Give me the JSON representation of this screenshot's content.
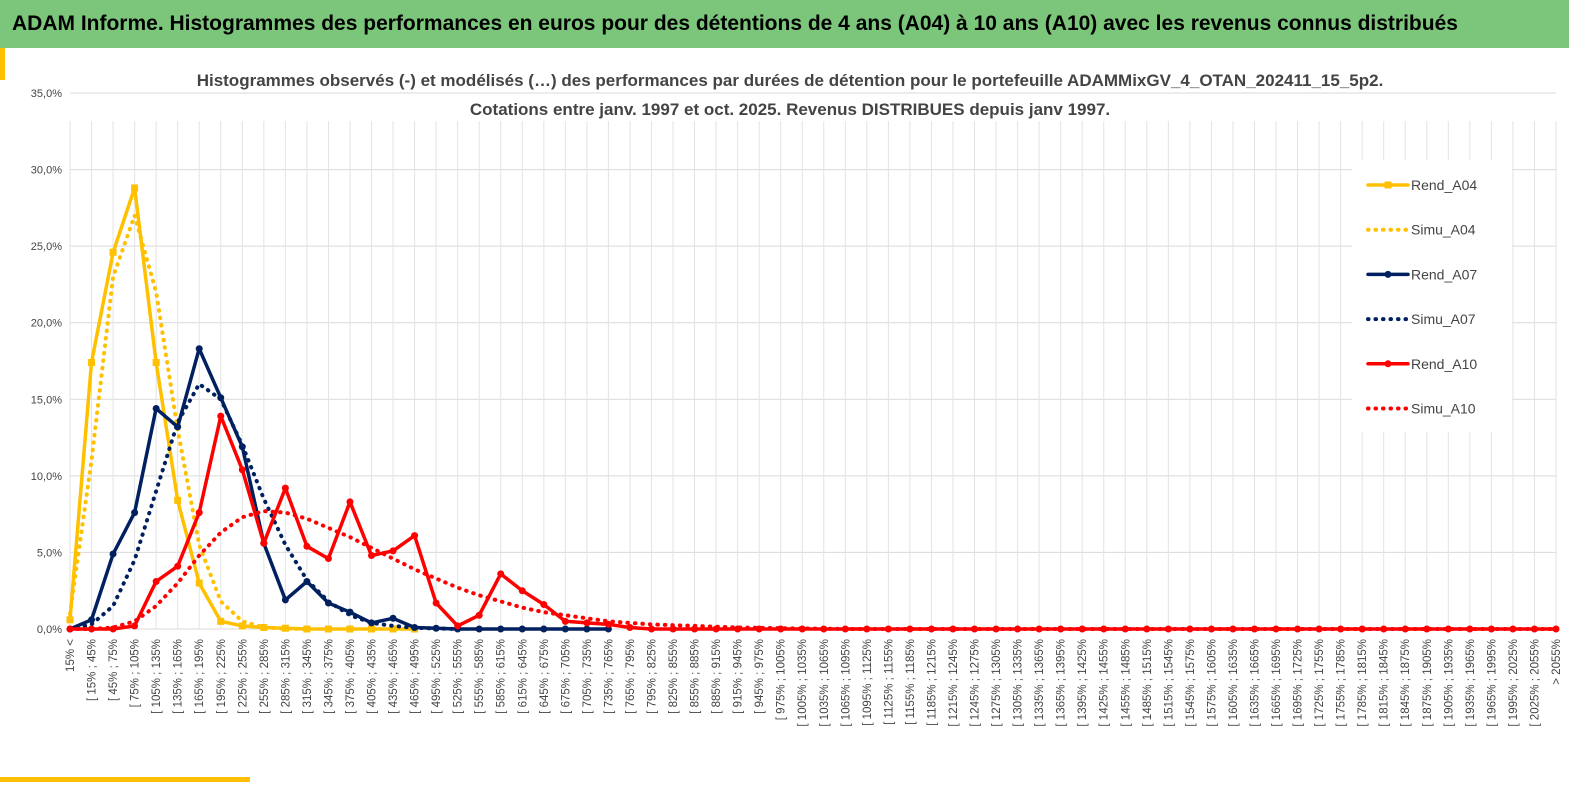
{
  "header": {
    "title": "ADAM Informe. Histogrammes des performances en euros pour des détentions de 4 ans (A04) à 10 ans (A10) avec les revenus connus distribués"
  },
  "chart_data": {
    "type": "line",
    "title": [
      "Histogrammes observés (-) et modélisés (…) des performances par durées de détention pour le portefeuille ADAMMixGV_4_OTAN_202411_15_5p2.",
      "Cotations entre janv. 1997 et oct. 2025. Revenus DISTRIBUES depuis janv 1997."
    ],
    "categories": [
      "15% <",
      "[ 15% ; 45%",
      "[ 45% ; 75%",
      "[ 75% ; 105%",
      "[ 105% ; 135%",
      "[ 135% ; 165%",
      "[ 165% ; 195%",
      "[ 195% ; 225%",
      "[ 225% ; 255%",
      "[ 255% ; 285%",
      "[ 285% ; 315%",
      "[ 315% ; 345%",
      "[ 345% ; 375%",
      "[ 375% ; 405%",
      "[ 405% ; 435%",
      "[ 435% ; 465%",
      "[ 465% ; 495%",
      "[ 495% ; 525%",
      "[ 525% ; 555%",
      "[ 555% ; 585%",
      "[ 585% ; 615%",
      "[ 615% ; 645%",
      "[ 645% ; 675%",
      "[ 675% ; 705%",
      "[ 705% ; 735%",
      "[ 735% ; 765%",
      "[ 765% ; 795%",
      "[ 795% ; 825%",
      "[ 825% ; 855%",
      "[ 855% ; 885%",
      "[ 885% ; 915%",
      "[ 915% ; 945%",
      "[ 945% ; 975%",
      "[ 975% ; 1005%",
      "[ 1005% ; 1035%",
      "[ 1035% ; 1065%",
      "[ 1065% ; 1095%",
      "[ 1095% ; 1125%",
      "[ 1125% ; 1155%",
      "[ 1155% ; 1185%",
      "[ 1185% ; 1215%",
      "[ 1215% ; 1245%",
      "[ 1245% ; 1275%",
      "[ 1275% ; 1305%",
      "[ 1305% ; 1335%",
      "[ 1335% ; 1365%",
      "[ 1365% ; 1395%",
      "[ 1395% ; 1425%",
      "[ 1425% ; 1455%",
      "[ 1455% ; 1485%",
      "[ 1485% ; 1515%",
      "[ 1515% ; 1545%",
      "[ 1545% ; 1575%",
      "[ 1575% ; 1605%",
      "[ 1605% ; 1635%",
      "[ 1635% ; 1665%",
      "[ 1665% ; 1695%",
      "[ 1695% ; 1725%",
      "[ 1725% ; 1755%",
      "[ 1755% ; 1785%",
      "[ 1785% ; 1815%",
      "[ 1815% ; 1845%",
      "[ 1845% ; 1875%",
      "[ 1875% ; 1905%",
      "[ 1905% ; 1935%",
      "[ 1935% ; 1965%",
      "[ 1965% ; 1995%",
      "[ 1995% ; 2025%",
      "[ 2025% ; 2055%",
      "> 2055%"
    ],
    "series": [
      {
        "name": "Rend_A04",
        "color": "#ffc000",
        "style": "solid",
        "marker": "square",
        "values": [
          0.6,
          17.4,
          24.6,
          28.8,
          17.4,
          8.4,
          3.0,
          0.5,
          0.2,
          0.1,
          0.05,
          0,
          0,
          0,
          0,
          0,
          0,
          null,
          null,
          null,
          null,
          null,
          null,
          null,
          null,
          null,
          null,
          null,
          null,
          null,
          null,
          null,
          null,
          null,
          null,
          null,
          null,
          null,
          null,
          null,
          null,
          null,
          null,
          null,
          null,
          null,
          null,
          null,
          null,
          null,
          null,
          null,
          null,
          null,
          null,
          null,
          null,
          null,
          null,
          null,
          null,
          null,
          null,
          null,
          null,
          null,
          null,
          null,
          null,
          null
        ]
      },
      {
        "name": "Simu_A04",
        "color": "#ffc000",
        "style": "dotted",
        "values": [
          1.0,
          11,
          23,
          27,
          22,
          13,
          5.5,
          1.8,
          0.5,
          0.1,
          0.02,
          0,
          null,
          null,
          null,
          null,
          null,
          null,
          null,
          null,
          null,
          null,
          null,
          null,
          null,
          null,
          null,
          null,
          null,
          null,
          null,
          null,
          null,
          null,
          null,
          null,
          null,
          null,
          null,
          null,
          null,
          null,
          null,
          null,
          null,
          null,
          null,
          null,
          null,
          null,
          null,
          null,
          null,
          null,
          null,
          null,
          null,
          null,
          null,
          null,
          null,
          null,
          null,
          null,
          null,
          null,
          null,
          null,
          null,
          null
        ]
      },
      {
        "name": "Rend_A07",
        "color": "#002060",
        "style": "solid",
        "marker": "circle",
        "values": [
          0,
          0.6,
          4.9,
          7.6,
          14.4,
          13.2,
          18.3,
          15.1,
          11.9,
          5.6,
          1.9,
          3.1,
          1.7,
          1.1,
          0.4,
          0.7,
          0.1,
          0.05,
          0,
          0,
          0,
          0,
          0,
          0,
          0,
          0,
          null,
          null,
          null,
          null,
          null,
          null,
          null,
          null,
          null,
          null,
          null,
          null,
          null,
          null,
          null,
          null,
          null,
          null,
          null,
          null,
          null,
          null,
          null,
          null,
          null,
          null,
          null,
          null,
          null,
          null,
          null,
          null,
          null,
          null,
          null,
          null,
          null,
          null,
          null,
          null,
          null,
          null,
          null,
          null
        ]
      },
      {
        "name": "Simu_A07",
        "color": "#002060",
        "style": "dotted",
        "values": [
          0,
          0.3,
          1.5,
          4.5,
          9,
          13.5,
          16,
          15,
          12,
          8.5,
          5.5,
          3.2,
          1.8,
          0.9,
          0.4,
          0.2,
          0.08,
          0.03,
          0,
          null,
          null,
          null,
          null,
          null,
          null,
          null,
          null,
          null,
          null,
          null,
          null,
          null,
          null,
          null,
          null,
          null,
          null,
          null,
          null,
          null,
          null,
          null,
          null,
          null,
          null,
          null,
          null,
          null,
          null,
          null,
          null,
          null,
          null,
          null,
          null,
          null,
          null,
          null,
          null,
          null,
          null,
          null,
          null,
          null,
          null,
          null,
          null,
          null,
          null,
          null
        ]
      },
      {
        "name": "Rend_A10",
        "color": "#ff0000",
        "style": "solid",
        "marker": "circle",
        "values": [
          0,
          0,
          0,
          0.2,
          3.1,
          4.1,
          7.6,
          13.9,
          10.4,
          5.6,
          9.2,
          5.4,
          4.6,
          8.3,
          4.8,
          5.1,
          6.1,
          1.7,
          0.2,
          0.9,
          3.6,
          2.5,
          1.6,
          0.5,
          0.4,
          0.3,
          0.1,
          0,
          0,
          0,
          0,
          0,
          0,
          0,
          0,
          0,
          0,
          0,
          0,
          0,
          0,
          0,
          0,
          0,
          0,
          0,
          0,
          0,
          0,
          0,
          0,
          0,
          0,
          0,
          0,
          0,
          0,
          0,
          0,
          0,
          0,
          0,
          0,
          0,
          0,
          0,
          0,
          0,
          0,
          0
        ]
      },
      {
        "name": "Simu_A10",
        "color": "#ff0000",
        "style": "dotted",
        "values": [
          0,
          0,
          0.1,
          0.5,
          1.5,
          3,
          4.8,
          6.3,
          7.3,
          7.7,
          7.6,
          7.2,
          6.6,
          6.0,
          5.3,
          4.6,
          3.9,
          3.3,
          2.7,
          2.2,
          1.8,
          1.4,
          1.1,
          0.9,
          0.7,
          0.5,
          0.4,
          0.3,
          0.25,
          0.2,
          0.15,
          0.1,
          0.08,
          0.05,
          0.03,
          0.02,
          0,
          0,
          0,
          0,
          0,
          0,
          0,
          0,
          0,
          0,
          0,
          0,
          0,
          0,
          0,
          0,
          0,
          0,
          0,
          0,
          0,
          0,
          0,
          0,
          0,
          0,
          0,
          0,
          0,
          0,
          0,
          0,
          0,
          0
        ]
      }
    ],
    "ylim": [
      0,
      35
    ],
    "yticks": [
      {
        "value": 0,
        "label": "0,0%"
      },
      {
        "value": 5,
        "label": "5,0%"
      },
      {
        "value": 10,
        "label": "10,0%"
      },
      {
        "value": 15,
        "label": "15,0%"
      },
      {
        "value": 20,
        "label": "20,0%"
      },
      {
        "value": 25,
        "label": "25,0%"
      },
      {
        "value": 30,
        "label": "30,0%"
      },
      {
        "value": 35,
        "label": "35,0%"
      }
    ],
    "grid": true,
    "legend": "right"
  }
}
